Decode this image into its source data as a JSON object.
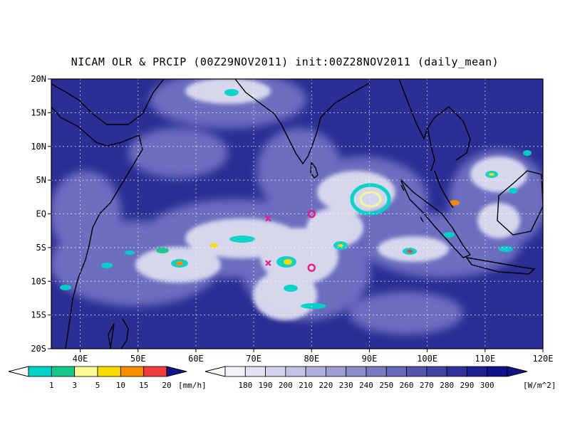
{
  "title": "NICAM OLR & PRCIP (00Z29NOV2011) init:00Z28NOV2011 (daily_mean)",
  "map": {
    "lat_ticks": [
      "20N",
      "15N",
      "10N",
      "5N",
      "EQ",
      "5S",
      "10S",
      "15S",
      "20S"
    ],
    "lon_ticks": [
      "40E",
      "50E",
      "60E",
      "70E",
      "80E",
      "90E",
      "100E",
      "110E",
      "120E"
    ],
    "lat_range": [
      -20,
      20
    ],
    "lon_range": [
      35,
      120
    ],
    "grid": "dotted",
    "colors": {
      "ocean_background": "#2b2e94",
      "cloud_mid": "#6f72c2",
      "cloud_bright": "#dcdcf0",
      "coastline": "#000000"
    }
  },
  "markers": [
    {
      "type": "circle",
      "lon": 80,
      "lat": 0,
      "color": "#e0208a"
    },
    {
      "type": "circle",
      "lon": 80,
      "lat": -8,
      "color": "#e0208a"
    },
    {
      "type": "cross",
      "lon": 72.5,
      "lat": -0.7,
      "color": "#e0208a"
    },
    {
      "type": "cross",
      "lon": 72.5,
      "lat": -7.3,
      "color": "#e0208a"
    }
  ],
  "precip_colorbar": {
    "unit": "[mm/h]",
    "labels": [
      "1",
      "3",
      "5",
      "10",
      "15",
      "20"
    ],
    "colors": [
      "#00d2c8",
      "#14c88c",
      "#fafa96",
      "#fadc00",
      "#fa8c00",
      "#f03c3c"
    ]
  },
  "olr_colorbar": {
    "unit": "[W/m^2]",
    "labels": [
      "180",
      "190",
      "200",
      "210",
      "220",
      "230",
      "240",
      "250",
      "260",
      "270",
      "280",
      "290",
      "300"
    ],
    "colors": [
      "#f2f2f8",
      "#e2e2f0",
      "#d2d2ea",
      "#c2c2e4",
      "#b0b0dc",
      "#9e9ed4",
      "#8c8ccc",
      "#7a7ac2",
      "#6868b8",
      "#5656ae",
      "#4444a4",
      "#32329a",
      "#202090",
      "#12128a"
    ]
  }
}
